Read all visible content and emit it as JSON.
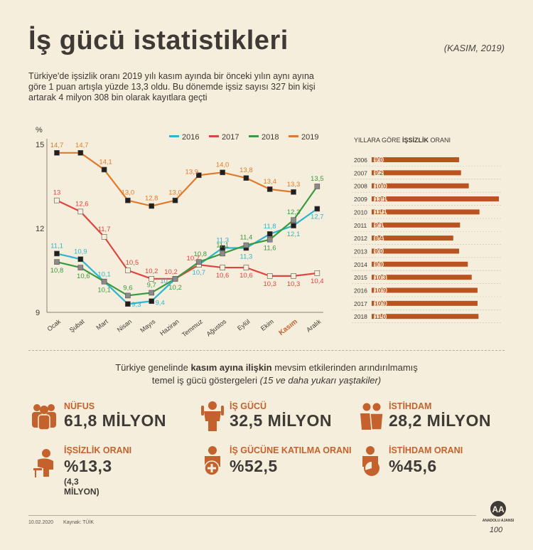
{
  "header": {
    "title": "İş gücü istatistikleri",
    "date": "(KASIM, 2019)",
    "intro": "Türkiye'de işsizlik oranı 2019 yılı kasım ayında bir önceki yılın aynı ayına göre 1 puan artışla yüzde 13,3 oldu. Bu dönemde işsiz sayısı 327 bin kişi artarak 4 milyon 308 bin olarak kayıtlara geçti"
  },
  "chart_data": [
    {
      "type": "line",
      "ylabel": "%",
      "ylim": [
        9,
        15
      ],
      "yticks": [
        "9",
        "12",
        "15"
      ],
      "categories": [
        "Ocak",
        "Şubat",
        "Mart",
        "Nisan",
        "Mayıs",
        "Haziran",
        "Temmuz",
        "Ağustos",
        "Eylül",
        "Ekim",
        "Kasım",
        "Aralık"
      ],
      "highlight_category": "Kasım",
      "grid": false,
      "legend": "top",
      "series": [
        {
          "name": "2016",
          "color": "#2cb5cf",
          "values": [
            11.1,
            10.9,
            10.1,
            9.3,
            9.4,
            10.2,
            10.7,
            11.3,
            11.3,
            11.8,
            12.1,
            12.7
          ],
          "labels": [
            "11,1",
            "10,9",
            "10,1",
            "9,3",
            "9,4",
            "10,2",
            "10,7",
            "11,3",
            "11,3",
            "11,8",
            "12,1",
            "12,7"
          ]
        },
        {
          "name": "2017",
          "color": "#e0443e",
          "values": [
            13.0,
            12.6,
            11.7,
            10.5,
            10.2,
            10.2,
            10.7,
            10.6,
            10.6,
            10.3,
            10.3,
            10.4
          ],
          "labels": [
            "13",
            "12,6",
            "11,7",
            "10,5",
            "10,2",
            "10,2",
            "10,7",
            "10,6",
            "10,6",
            "10,3",
            "10,3",
            "10,4"
          ]
        },
        {
          "name": "2018",
          "color": "#3a9a3f",
          "values": [
            10.8,
            10.6,
            10.1,
            9.6,
            9.7,
            10.2,
            10.8,
            11.1,
            11.4,
            11.6,
            12.3,
            13.5
          ],
          "labels": [
            "10,8",
            "10,6",
            "10,1",
            "9,6",
            "9,7",
            "10,2",
            "10,8",
            "11,1",
            "11,4",
            "11,6",
            "12,3",
            "13,5"
          ]
        },
        {
          "name": "2019",
          "color": "#e07a28",
          "values": [
            14.7,
            14.7,
            14.1,
            13.0,
            12.8,
            13.0,
            13.9,
            14.0,
            13.8,
            13.4,
            13.3,
            null
          ],
          "labels": [
            "14,7",
            "14,7",
            "14,1",
            "13,0",
            "12,8",
            "13,0",
            "13,9",
            "14,0",
            "13,8",
            "13,4",
            "13,3",
            ""
          ]
        }
      ]
    },
    {
      "type": "bar",
      "title": "YILLARA GÖRE İŞSİZLİK ORANI",
      "title_pre": "YILLARA GÖRE ",
      "title_bold": "İŞSİZLİK",
      "title_post": " ORANI",
      "orientation": "horizontal",
      "color": "#b9531f",
      "categories": [
        "2006",
        "2007",
        "2008",
        "2009",
        "2010",
        "2011",
        "2012",
        "2013",
        "2014",
        "2015",
        "2016",
        "2017",
        "2018"
      ],
      "values": [
        9.0,
        9.2,
        10.0,
        13.1,
        11.1,
        9.1,
        8.4,
        9.0,
        9.9,
        10.3,
        10.9,
        10.9,
        11.0
      ],
      "labels": [
        "9.0",
        "9.2",
        "10.0",
        "13.1",
        "11.1",
        "9.1",
        "8.4",
        "9.0",
        "9.9",
        "10.3",
        "10.9",
        "10.9",
        "11.0"
      ]
    }
  ],
  "subtitle": {
    "pre": "Türkiye genelinde ",
    "bold": "kasım ayına ilişkin",
    "mid": " mevsim etkilerinden arındırılmamış",
    "line2": "temel iş gücü göstergeleri ",
    "ital": "(15 ve daha yukarı yaştakiler)"
  },
  "stats": {
    "nufus": {
      "label": "NÜFUS",
      "value": "61,8 MİLYON",
      "icon": "people-group-icon"
    },
    "isgucu": {
      "label": "İŞ GÜCÜ",
      "value": "32,5 MİLYON",
      "icon": "worker-icon"
    },
    "istihdam": {
      "label": "İSTİHDAM",
      "value": "28,2 MİLYON",
      "icon": "employees-icon"
    },
    "issizlik": {
      "label": "İŞSİZLİK ORANI",
      "value": "%13,3",
      "note": "(4,3 MİLYON)",
      "icon": "unemployed-person-icon"
    },
    "katilma": {
      "label": "İŞ GÜCÜNE KATILMA ORANI",
      "value": "%52,5",
      "icon": "person-plus-icon"
    },
    "istihdamorani": {
      "label": "İSTİHDAM ORANI",
      "value": "%45,6",
      "icon": "person-pie-icon"
    }
  },
  "footer": {
    "date": "10.02.2020",
    "source": "Kaynak: TÜİK"
  },
  "logo": {
    "text": "ANADOLU AJANSI",
    "mark": "AA",
    "anniv": "100"
  },
  "colors": {
    "accent": "#c4622d",
    "bg": "#f6eedc",
    "dark": "#3f3a36"
  }
}
